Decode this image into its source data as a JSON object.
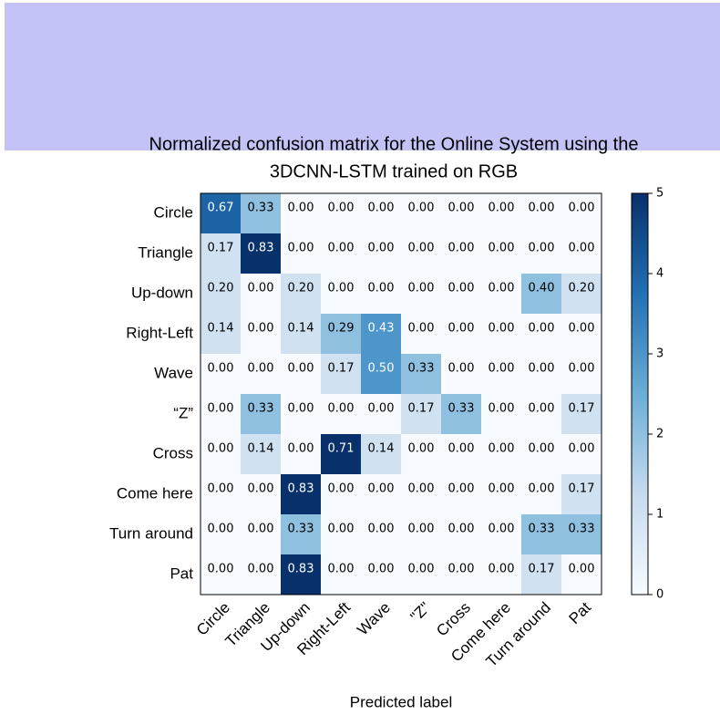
{
  "chart_data": {
    "type": "heatmap",
    "title": [
      "Normalized confusion matrix for the Online System using the",
      "3DCNN-LSTM trained on RGB"
    ],
    "x_label": "Predicted label",
    "categories": [
      "Circle",
      "Triangle",
      "Up-down",
      "Right-Left",
      "Wave",
      "“Z”",
      "Cross",
      "Come here",
      "Turn around",
      "Pat"
    ],
    "x_categories": [
      "Circle",
      "Triangle",
      "Up-down",
      "Right-Left",
      "Wave",
      "\"Z\"",
      "Cross",
      "Come here",
      "Turn around",
      "Pat"
    ],
    "values": [
      [
        0.67,
        0.33,
        0,
        0,
        0,
        0,
        0,
        0,
        0,
        0
      ],
      [
        0.17,
        0.83,
        0,
        0,
        0,
        0,
        0,
        0,
        0,
        0
      ],
      [
        0.2,
        0,
        0.2,
        0,
        0,
        0,
        0,
        0,
        0.4,
        0.2
      ],
      [
        0.14,
        0,
        0.14,
        0.29,
        0.43,
        0,
        0,
        0,
        0,
        0
      ],
      [
        0,
        0,
        0,
        0.17,
        0.5,
        0.33,
        0,
        0,
        0,
        0
      ],
      [
        0,
        0.33,
        0,
        0,
        0,
        0.17,
        0.33,
        0,
        0,
        0.17
      ],
      [
        0,
        0.14,
        0,
        0.71,
        0.14,
        0,
        0,
        0,
        0,
        0
      ],
      [
        0,
        0,
        0.83,
        0,
        0,
        0,
        0,
        0,
        0,
        0.17
      ],
      [
        0,
        0,
        0.33,
        0,
        0,
        0,
        0,
        0,
        0.33,
        0.33
      ],
      [
        0,
        0,
        0.83,
        0,
        0,
        0,
        0,
        0,
        0.17,
        0
      ]
    ],
    "value_labels": [
      [
        "0.67",
        "0.33",
        "0.00",
        "0.00",
        "0.00",
        "0.00",
        "0.00",
        "0.00",
        "0.00",
        "0.00"
      ],
      [
        "0.17",
        "0.83",
        "0.00",
        "0.00",
        "0.00",
        "0.00",
        "0.00",
        "0.00",
        "0.00",
        "0.00"
      ],
      [
        "0.20",
        "0.00",
        "0.20",
        "0.00",
        "0.00",
        "0.00",
        "0.00",
        "0.00",
        "0.40",
        "0.20"
      ],
      [
        "0.14",
        "0.00",
        "0.14",
        "0.29",
        "0.43",
        "0.00",
        "0.00",
        "0.00",
        "0.00",
        "0.00"
      ],
      [
        "0.00",
        "0.00",
        "0.00",
        "0.17",
        "0.50",
        "0.33",
        "0.00",
        "0.00",
        "0.00",
        "0.00"
      ],
      [
        "0.00",
        "0.33",
        "0.00",
        "0.00",
        "0.00",
        "0.17",
        "0.33",
        "0.00",
        "0.00",
        "0.17"
      ],
      [
        "0.00",
        "0.14",
        "0.00",
        "0.71",
        "0.14",
        "0.00",
        "0.00",
        "0.00",
        "0.00",
        "0.00"
      ],
      [
        "0.00",
        "0.00",
        "0.83",
        "0.00",
        "0.00",
        "0.00",
        "0.00",
        "0.00",
        "0.00",
        "0.17"
      ],
      [
        "0.00",
        "0.00",
        "0.33",
        "0.00",
        "0.00",
        "0.00",
        "0.00",
        "0.00",
        "0.33",
        "0.33"
      ],
      [
        "0.00",
        "0.00",
        "0.83",
        "0.00",
        "0.00",
        "0.00",
        "0.00",
        "0.00",
        "0.17",
        "0.00"
      ]
    ],
    "counts": [
      [
        4,
        2,
        0,
        0,
        0,
        0,
        0,
        0,
        0,
        0
      ],
      [
        1,
        5,
        0,
        0,
        0,
        0,
        0,
        0,
        0,
        0
      ],
      [
        1,
        0,
        1,
        0,
        0,
        0,
        0,
        0,
        2,
        1
      ],
      [
        1,
        0,
        1,
        2,
        3,
        0,
        0,
        0,
        0,
        0
      ],
      [
        0,
        0,
        0,
        1,
        3,
        2,
        0,
        0,
        0,
        0
      ],
      [
        0,
        2,
        0,
        0,
        0,
        1,
        2,
        0,
        0,
        1
      ],
      [
        0,
        1,
        0,
        5,
        1,
        0,
        0,
        0,
        0,
        0
      ],
      [
        0,
        0,
        5,
        0,
        0,
        0,
        0,
        0,
        0,
        1
      ],
      [
        0,
        0,
        2,
        0,
        0,
        0,
        0,
        0,
        2,
        2
      ],
      [
        0,
        0,
        5,
        0,
        0,
        0,
        0,
        0,
        1,
        0
      ]
    ],
    "colorbar_lim": [
      0,
      5
    ],
    "colorbar_ticks": [
      0,
      1,
      2,
      3,
      4,
      5
    ]
  }
}
